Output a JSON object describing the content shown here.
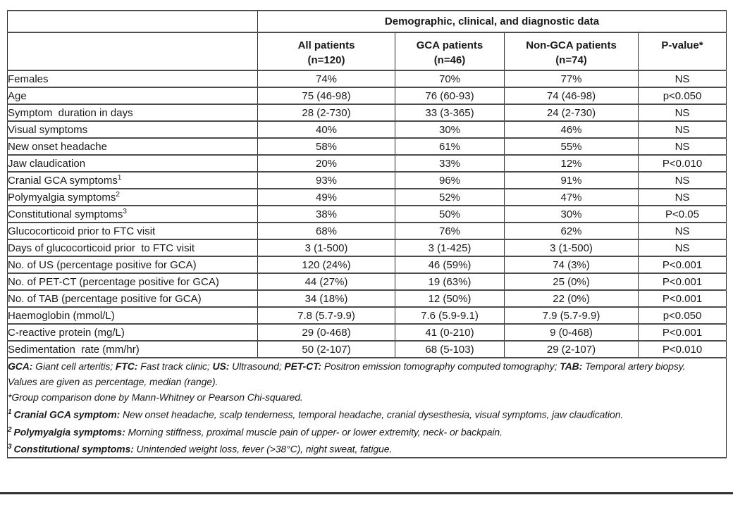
{
  "table": {
    "title": "Demographic, clinical, and diagnostic data",
    "columns": [
      {
        "name": "All patients",
        "n": "(n=120)"
      },
      {
        "name": "GCA patients",
        "n": "(n=46)"
      },
      {
        "name": "Non-GCA patients",
        "n": "(n=74)"
      },
      {
        "name": "P-value*",
        "n": ""
      }
    ],
    "rows": [
      {
        "label": "Females",
        "sup": "",
        "all": "74%",
        "gca": "70%",
        "non_gca": "77%",
        "p": "NS"
      },
      {
        "label": "Age",
        "sup": "",
        "all": "75 (46-98)",
        "gca": "76 (60-93)",
        "non_gca": "74 (46-98)",
        "p": "p<0.050"
      },
      {
        "label": "Symptom  duration in days",
        "sup": "",
        "all": "28 (2-730)",
        "gca": "33 (3-365)",
        "non_gca": "24 (2-730)",
        "p": "NS"
      },
      {
        "label": "Visual symptoms",
        "sup": "",
        "all": "40%",
        "gca": "30%",
        "non_gca": "46%",
        "p": "NS"
      },
      {
        "label": "New onset headache",
        "sup": "",
        "all": "58%",
        "gca": "61%",
        "non_gca": "55%",
        "p": "NS"
      },
      {
        "label": "Jaw claudication",
        "sup": "",
        "all": "20%",
        "gca": "33%",
        "non_gca": "12%",
        "p": "P<0.010"
      },
      {
        "label": "Cranial GCA symptoms",
        "sup": "1",
        "all": "93%",
        "gca": "96%",
        "non_gca": "91%",
        "p": "NS"
      },
      {
        "label": "Polymyalgia symptoms",
        "sup": "2",
        "all": "49%",
        "gca": "52%",
        "non_gca": "47%",
        "p": "NS"
      },
      {
        "label": "Constitutional symptoms",
        "sup": "3",
        "all": "38%",
        "gca": "50%",
        "non_gca": "30%",
        "p": "P<0.05"
      },
      {
        "label": "Glucocorticoid prior to FTC visit",
        "sup": "",
        "all": "68%",
        "gca": "76%",
        "non_gca": "62%",
        "p": "NS"
      },
      {
        "label": "Days of glucocorticoid prior  to FTC visit",
        "sup": "",
        "all": "3 (1-500)",
        "gca": "3 (1-425)",
        "non_gca": "3 (1-500)",
        "p": "NS"
      },
      {
        "label": "No. of US (percentage positive for GCA)",
        "sup": "",
        "all": "120 (24%)",
        "gca": "46 (59%)",
        "non_gca": "74 (3%)",
        "p": "P<0.001"
      },
      {
        "label": "No. of PET-CT (percentage positive for GCA)",
        "sup": "",
        "all": "44 (27%)",
        "gca": "19 (63%)",
        "non_gca": "25 (0%)",
        "p": "P<0.001"
      },
      {
        "label": "No. of TAB (percentage positive for GCA)",
        "sup": "",
        "all": "34 (18%)",
        "gca": "12 (50%)",
        "non_gca": "22 (0%)",
        "p": "P<0.001"
      },
      {
        "label": "Haemoglobin (mmol/L)",
        "sup": "",
        "all": "7.8 (5.7-9.9)",
        "gca": "7.6 (5.9-9.1)",
        "non_gca": "7.9 (5.7-9.9)",
        "p": "p<0.050"
      },
      {
        "label": "C-reactive protein (mg/L)",
        "sup": "",
        "all": "29 (0-468)",
        "gca": "41 (0-210)",
        "non_gca": "9 (0-468)",
        "p": "P<0.001"
      },
      {
        "label": "Sedimentation  rate (mm/hr)",
        "sup": "",
        "all": "50 (2-107)",
        "gca": "68 (5-103)",
        "non_gca": "29 (2-107)",
        "p": "P<0.010"
      }
    ]
  },
  "footnotes": {
    "abbr": [
      {
        "term": "GCA:",
        "def": " Giant cell arteritis; "
      },
      {
        "term": "FTC:",
        "def": " Fast track clinic; "
      },
      {
        "term": "US:",
        "def": " Ultrasound; "
      },
      {
        "term": "PET-CT:",
        "def": " Positron emission tomography computed tomography; "
      },
      {
        "term": "TAB:",
        "def": " Temporal artery biopsy."
      }
    ],
    "values_note": "Values are given as percentage, median (range).",
    "group_note": "*Group comparison done by Mann-Whitney or Pearson Chi-squared.",
    "sup_notes": [
      {
        "sup": "1",
        "term": "Cranial GCA symptom:",
        "def": " New onset headache, scalp tenderness, temporal headache, cranial dysesthesia, visual symptoms, jaw claudication."
      },
      {
        "sup": "2",
        "term": "Polymyalgia symptoms:",
        "def": " Morning stiffness, proximal muscle pain of upper- or lower extremity, neck- or backpain."
      },
      {
        "sup": "3",
        "term": "Constitutional symptoms:",
        "def": " Unintended weight loss, fever (>38°C), night sweat, fatigue."
      }
    ]
  }
}
